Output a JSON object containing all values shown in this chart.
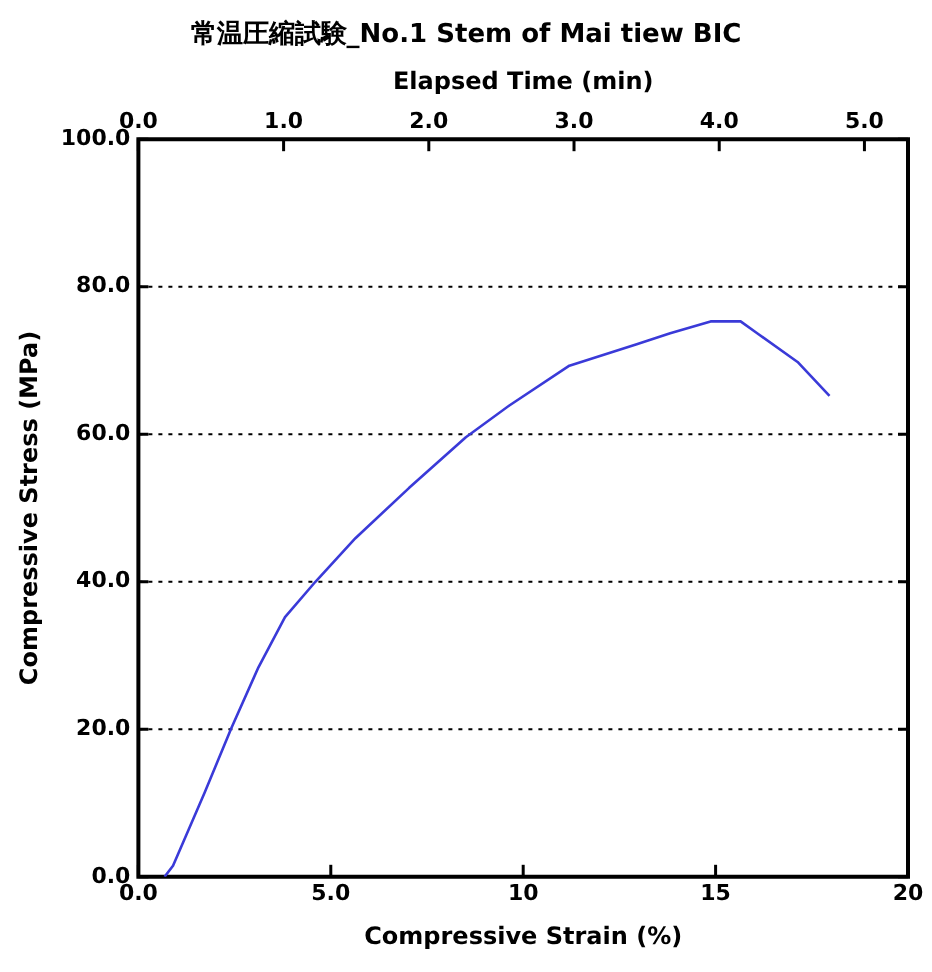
{
  "chart_data": {
    "type": "line",
    "title": "常温圧縮試験_No.1 Stem of Mai tiew BIC",
    "xlabel": "Compressive Strain (%)",
    "ylabel": "Compressive Stress (MPa)",
    "x2label": "Elapsed Time (min)",
    "x": [
      0.68,
      0.9,
      1.72,
      2.42,
      3.12,
      3.81,
      4.6,
      5.64,
      7.03,
      8.51,
      9.64,
      11.2,
      12.95,
      13.82,
      14.87,
      15.65,
      16.08,
      17.13,
      17.96
    ],
    "series": [
      {
        "color": "#3a3ad8",
        "values": [
          0,
          1.5,
          11.4,
          20.2,
          28.4,
          35.2,
          40,
          45.9,
          52.7,
          59.6,
          63.9,
          69.3,
          72.2,
          73.7,
          75.3,
          75.3,
          73.7,
          69.8,
          65.2
        ]
      }
    ],
    "xlim": [
      0,
      20
    ],
    "xticks": [
      {
        "value": 0,
        "label": "0.0"
      },
      {
        "value": 5,
        "label": "5.0"
      },
      10,
      15,
      20
    ],
    "ylim": [
      0,
      100
    ],
    "yticks": [
      {
        "value": 0,
        "label": "0.0"
      },
      {
        "value": 20,
        "label": "20.0"
      },
      {
        "value": 40,
        "label": "40.0"
      },
      {
        "value": 60,
        "label": "60.0"
      },
      {
        "value": 80,
        "label": "80.0"
      },
      {
        "value": 100,
        "label": "100.0"
      }
    ],
    "x2lim": [
      0,
      5.3
    ],
    "x2ticks": [
      {
        "value": 0,
        "label": "0.0"
      },
      {
        "value": 1,
        "label": "1.0"
      },
      {
        "value": 2,
        "label": "2.0"
      },
      {
        "value": 3,
        "label": "3.0"
      },
      {
        "value": 4,
        "label": "4.0"
      },
      {
        "value": 5,
        "label": "5.0"
      }
    ],
    "grid": "y",
    "line_style": "solid",
    "marker": "none",
    "legend": false
  }
}
